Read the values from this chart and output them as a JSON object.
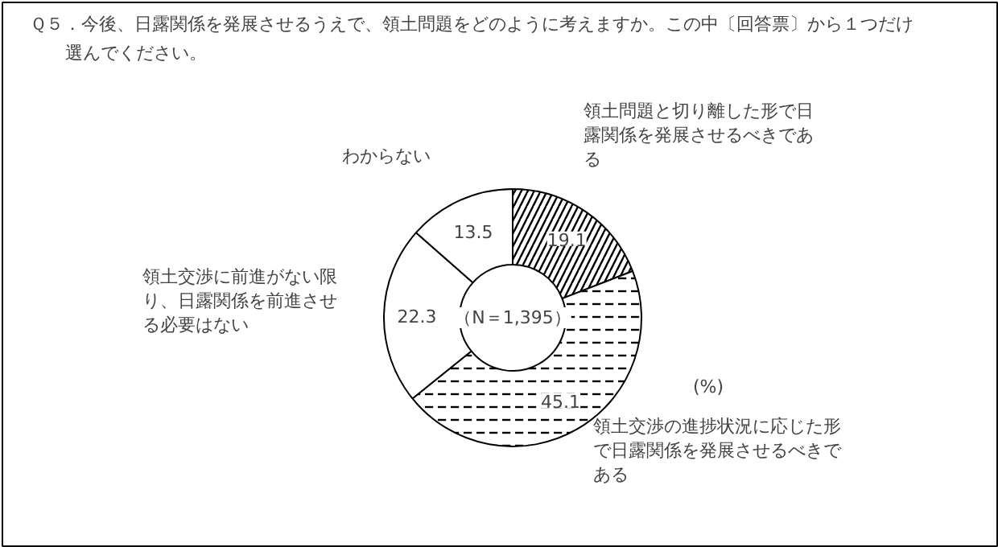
{
  "chart_data": {
    "type": "donut",
    "title": "Ｑ５．今後、日露関係を発展させるうえで、領土問題をどのように考えますか。この中〔回答票〕から１つだけ選んでください。",
    "categories": [
      "領土問題と切り離した形で日露関係を発展させるべきである",
      "領土交渉の進捗状況に応じた形で日露関係を発展させるべきである",
      "領土交渉に前進がない限り、日露関係を前進させる必要はない",
      "わからない"
    ],
    "values": [
      19.1,
      45.1,
      22.3,
      13.5
    ],
    "colors": [
      "#ffffff",
      "#ffffff",
      "#ffffff",
      "#ffffff"
    ],
    "data_labels": true,
    "annotations": [
      "（N＝1,395）",
      "(%)"
    ]
  }
}
